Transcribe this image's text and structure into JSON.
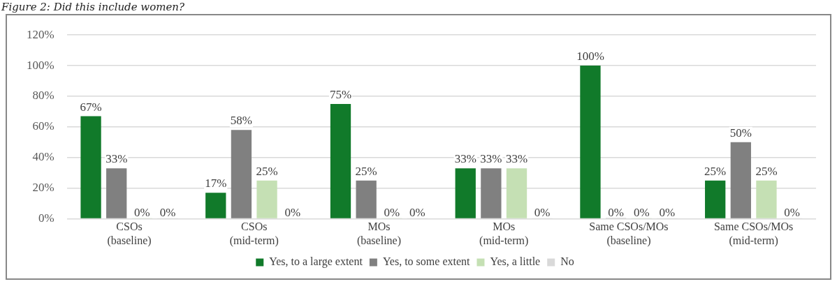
{
  "chart_data": {
    "type": "bar",
    "title": "Figure 2: Did this include women?",
    "categories": [
      "CSOs\n(baseline)",
      "CSOs\n(mid-term)",
      "MOs\n(baseline)",
      "MOs\n(mid-term)",
      "Same CSOs/MOs\n(baseline)",
      "Same CSOs/MOs\n(mid-term)"
    ],
    "series": [
      {
        "name": "Yes, to a large extent",
        "color": "#117a2a",
        "values": [
          67,
          17,
          75,
          33,
          100,
          25
        ],
        "value_labels": [
          "67%",
          "17%",
          "75%",
          "33%",
          "100%",
          "25%"
        ]
      },
      {
        "name": "Yes, to some extent",
        "color": "#808080",
        "values": [
          33,
          58,
          25,
          33,
          0,
          50
        ],
        "value_labels": [
          "33%",
          "58%",
          "25%",
          "33%",
          "0%",
          "50%"
        ]
      },
      {
        "name": "Yes, a little",
        "color": "#c5e0b4",
        "values": [
          0,
          25,
          0,
          33,
          0,
          25
        ],
        "value_labels": [
          "0%",
          "25%",
          "0%",
          "33%",
          "0%",
          "25%"
        ]
      },
      {
        "name": "No",
        "color": "#d9d9d9",
        "values": [
          0,
          0,
          0,
          0,
          0,
          0
        ],
        "value_labels": [
          "0%",
          "0%",
          "0%",
          "0%",
          "0%",
          "0%"
        ]
      }
    ],
    "ylim": [
      0,
      120
    ],
    "yticks": [
      {
        "value": 0,
        "label": "0%"
      },
      {
        "value": 20,
        "label": "20%"
      },
      {
        "value": 40,
        "label": "40%"
      },
      {
        "value": 60,
        "label": "60%"
      },
      {
        "value": 80,
        "label": "80%"
      },
      {
        "value": 100,
        "label": "100%"
      },
      {
        "value": 120,
        "label": "120%"
      }
    ],
    "grid": "y",
    "legend": "bottom"
  }
}
